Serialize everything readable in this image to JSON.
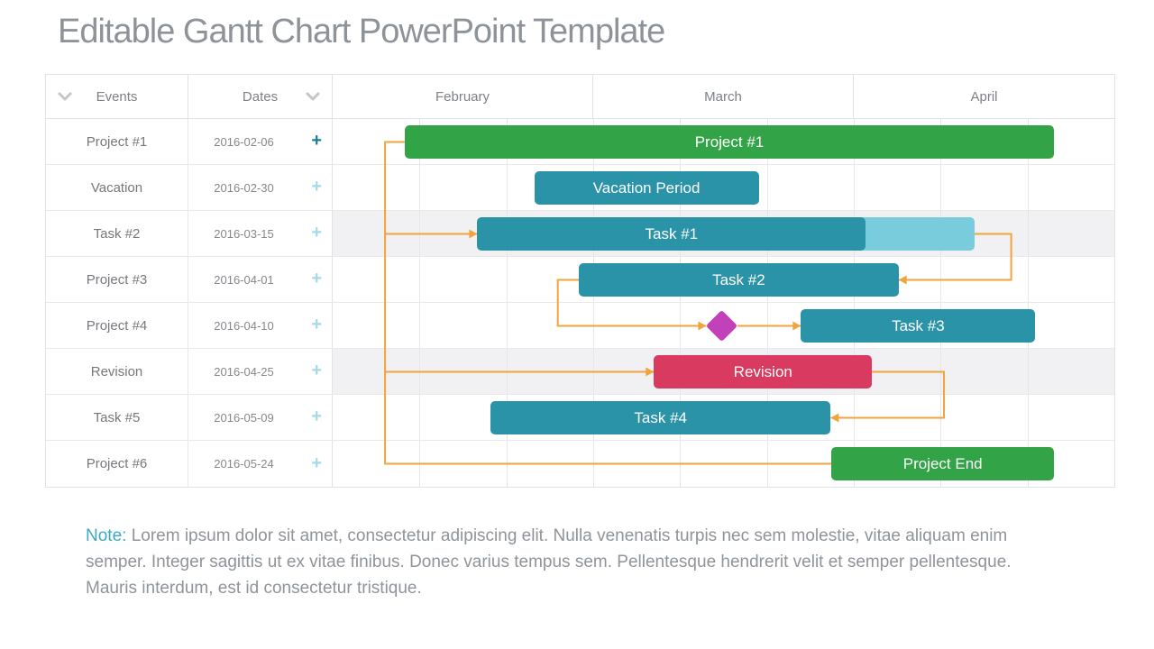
{
  "title": "Editable Gantt Chart PowerPoint Template",
  "table": {
    "events_header": "Events",
    "dates_header": "Dates",
    "rows": [
      {
        "event": "Project #1",
        "date": "2016-02-06",
        "plus": "+",
        "plus_variant": "dark"
      },
      {
        "event": "Vacation",
        "date": "2016-02-30",
        "plus": "+",
        "plus_variant": "light"
      },
      {
        "event": "Task #2",
        "date": "2016-03-15",
        "plus": "+",
        "plus_variant": "light"
      },
      {
        "event": "Project #3",
        "date": "2016-04-01",
        "plus": "+",
        "plus_variant": "light"
      },
      {
        "event": "Project #4",
        "date": "2016-04-10",
        "plus": "+",
        "plus_variant": "light"
      },
      {
        "event": "Revision",
        "date": "2016-04-25",
        "plus": "+",
        "plus_variant": "light"
      },
      {
        "event": "Task #5",
        "date": "2016-05-09",
        "plus": "+",
        "plus_variant": "light"
      },
      {
        "event": "Project #6",
        "date": "2016-05-24",
        "plus": "+",
        "plus_variant": "light"
      }
    ]
  },
  "chart_data": {
    "type": "gantt",
    "months": [
      "February",
      "March",
      "April"
    ],
    "columns_per_month": 3,
    "rows_count": 8,
    "striped_rows": [
      2,
      5
    ],
    "bars": [
      {
        "row": 0,
        "label": "Project #1",
        "color": "#32a346",
        "start": 0.092,
        "end": 0.923
      },
      {
        "row": 1,
        "label": "Vacation Period",
        "color": "#2b93a8",
        "start": 0.258,
        "end": 0.545
      },
      {
        "row": 2,
        "label": "Task #1",
        "color": "#2b93a8",
        "start": 0.185,
        "end": 0.682,
        "extension_end": 0.821,
        "extension_color": "#79ccdb"
      },
      {
        "row": 3,
        "label": "Task #2",
        "color": "#2b93a8",
        "start": 0.315,
        "end": 0.724
      },
      {
        "row": 4,
        "label": "Task #3",
        "color": "#2b93a8",
        "start": 0.599,
        "end": 0.899
      },
      {
        "row": 5,
        "label": "Revision",
        "color": "#d83a60",
        "start": 0.411,
        "end": 0.69
      },
      {
        "row": 6,
        "label": "Task #4",
        "color": "#2b93a8",
        "start": 0.202,
        "end": 0.637
      },
      {
        "row": 7,
        "label": "Project End",
        "color": "#32a346",
        "start": 0.638,
        "end": 0.923
      }
    ],
    "milestone": {
      "row": 4,
      "x": 0.498,
      "color": "#c340bb"
    },
    "connector_color": "#f2a43c",
    "connectors": [
      {
        "points": [
          [
            0.092,
            0.5
          ],
          [
            0.067,
            0.5
          ],
          [
            0.067,
            7.5
          ],
          [
            0.638,
            7.5
          ]
        ],
        "arrow": "none"
      },
      {
        "points": [
          [
            0.067,
            2.5
          ],
          [
            0.185,
            2.5
          ]
        ],
        "arrow": "right"
      },
      {
        "points": [
          [
            0.067,
            5.5
          ],
          [
            0.411,
            5.5
          ]
        ],
        "arrow": "right"
      },
      {
        "points": [
          [
            0.821,
            2.5
          ],
          [
            0.868,
            2.5
          ],
          [
            0.868,
            3.5
          ],
          [
            0.724,
            3.5
          ]
        ],
        "arrow": "left"
      },
      {
        "points": [
          [
            0.315,
            3.5
          ],
          [
            0.288,
            3.5
          ],
          [
            0.288,
            4.5
          ],
          [
            0.478,
            4.5
          ]
        ],
        "arrow": "right"
      },
      {
        "points": [
          [
            0.518,
            4.5
          ],
          [
            0.599,
            4.5
          ]
        ],
        "arrow": "right"
      },
      {
        "points": [
          [
            0.69,
            5.5
          ],
          [
            0.782,
            5.5
          ],
          [
            0.782,
            6.5
          ],
          [
            0.637,
            6.5
          ]
        ],
        "arrow": "left"
      }
    ]
  },
  "note": {
    "label": "Note:",
    "text": "Lorem ipsum dolor sit amet, consectetur adipiscing elit. Nulla venenatis turpis nec sem molestie, vitae aliquam enim semper. Integer sagittis ut ex vitae finibus. Donec varius tempus sem. Pellentesque hendrerit velit et semper pellentesque. Mauris interdum, est id consectetur tristique."
  },
  "icons": {
    "sort_chevron": "chevron-down",
    "add_row": "plus"
  },
  "colors": {
    "green": "#32a346",
    "teal": "#2b93a8",
    "teal_light": "#79ccdb",
    "crimson": "#d83a60",
    "magenta": "#c340bb",
    "orange": "#f2a43c",
    "note_accent": "#3aa8c6",
    "title_gray": "#8e939a",
    "grid_gray": "#e7e7e9",
    "stripe_gray": "#f1f1f3"
  }
}
